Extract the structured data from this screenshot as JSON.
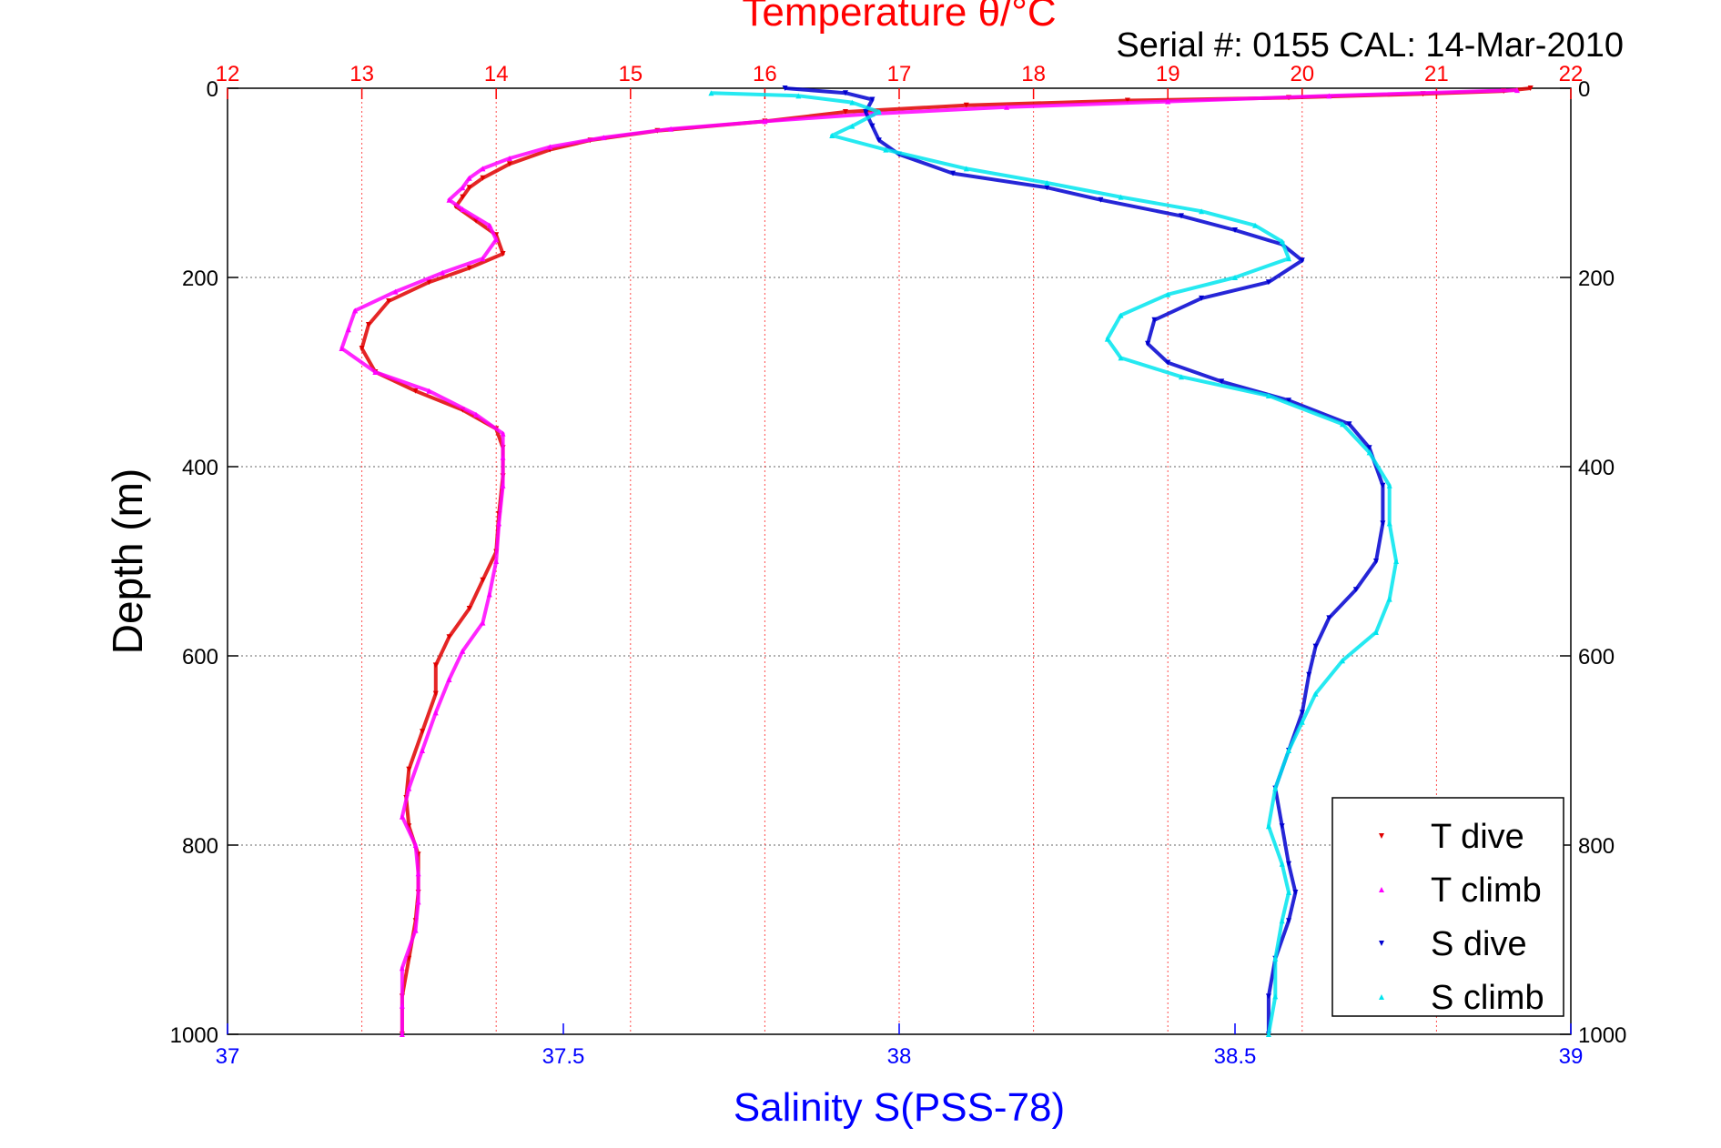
{
  "chart_data": {
    "type": "scatter",
    "title": "Temperature θ/°C",
    "subtitle": "Serial #: 0155  CAL: 14-Mar-2010",
    "ylabel": "Depth (m)",
    "xlabel_bottom": "Salinity S(PSS-78)",
    "xlabel_top": "Temperature θ/°C",
    "y_reversed": true,
    "ylim": [
      0,
      1000
    ],
    "xlim_bottom": [
      37,
      39
    ],
    "xlim_top": [
      12,
      22
    ],
    "y_ticks": [
      "0",
      "200",
      "400",
      "600",
      "800",
      "1000"
    ],
    "x_ticks_bottom": [
      "37",
      "37.5",
      "38",
      "38.5",
      "39"
    ],
    "x_ticks_top": [
      "12",
      "13",
      "14",
      "15",
      "16",
      "17",
      "18",
      "19",
      "20",
      "21",
      "22"
    ],
    "grid": true,
    "legend_position": "bottom-right",
    "colors": {
      "temperature_axis": "#ff0000",
      "salinity_axis": "#0000ff",
      "t_dive": "#e00000",
      "t_climb": "#ff00ff",
      "s_dive": "#0000d0",
      "s_climb": "#00e5ee"
    },
    "series": [
      {
        "name": "T dive",
        "axis": "top",
        "color": "#e00000",
        "marker": "triangle-down",
        "points": [
          [
            21.7,
            0
          ],
          [
            21.5,
            3
          ],
          [
            20.9,
            6
          ],
          [
            19.9,
            10
          ],
          [
            18.7,
            13
          ],
          [
            17.5,
            18
          ],
          [
            16.6,
            25
          ],
          [
            16.0,
            35
          ],
          [
            15.2,
            45
          ],
          [
            14.7,
            55
          ],
          [
            14.4,
            65
          ],
          [
            14.1,
            80
          ],
          [
            13.9,
            95
          ],
          [
            13.8,
            105
          ],
          [
            13.75,
            115
          ],
          [
            13.7,
            125
          ],
          [
            13.85,
            140
          ],
          [
            14.0,
            155
          ],
          [
            14.05,
            175
          ],
          [
            13.8,
            190
          ],
          [
            13.5,
            205
          ],
          [
            13.2,
            225
          ],
          [
            13.05,
            250
          ],
          [
            13.0,
            275
          ],
          [
            13.1,
            300
          ],
          [
            13.4,
            320
          ],
          [
            13.75,
            340
          ],
          [
            14.0,
            360
          ],
          [
            14.05,
            380
          ],
          [
            14.05,
            410
          ],
          [
            14.02,
            450
          ],
          [
            14.0,
            490
          ],
          [
            13.9,
            520
          ],
          [
            13.8,
            550
          ],
          [
            13.65,
            580
          ],
          [
            13.55,
            610
          ],
          [
            13.55,
            640
          ],
          [
            13.45,
            680
          ],
          [
            13.35,
            720
          ],
          [
            13.33,
            750
          ],
          [
            13.35,
            780
          ],
          [
            13.42,
            810
          ],
          [
            13.42,
            850
          ],
          [
            13.4,
            880
          ],
          [
            13.35,
            920
          ],
          [
            13.3,
            960
          ],
          [
            13.3,
            1000
          ]
        ]
      },
      {
        "name": "T climb",
        "axis": "top",
        "color": "#ff00ff",
        "marker": "triangle-up",
        "points": [
          [
            21.6,
            2
          ],
          [
            20.2,
            8
          ],
          [
            19.0,
            14
          ],
          [
            17.8,
            20
          ],
          [
            16.8,
            27
          ],
          [
            16.0,
            35
          ],
          [
            15.3,
            43
          ],
          [
            14.8,
            52
          ],
          [
            14.4,
            62
          ],
          [
            14.1,
            74
          ],
          [
            13.9,
            85
          ],
          [
            13.8,
            95
          ],
          [
            13.75,
            105
          ],
          [
            13.65,
            118
          ],
          [
            13.75,
            128
          ],
          [
            13.95,
            145
          ],
          [
            14.0,
            160
          ],
          [
            13.9,
            180
          ],
          [
            13.6,
            195
          ],
          [
            13.25,
            215
          ],
          [
            12.95,
            235
          ],
          [
            12.9,
            255
          ],
          [
            12.85,
            275
          ],
          [
            13.1,
            300
          ],
          [
            13.5,
            320
          ],
          [
            13.85,
            345
          ],
          [
            14.05,
            365
          ],
          [
            14.05,
            390
          ],
          [
            14.05,
            420
          ],
          [
            14.02,
            460
          ],
          [
            14.0,
            500
          ],
          [
            13.95,
            535
          ],
          [
            13.9,
            565
          ],
          [
            13.75,
            595
          ],
          [
            13.65,
            625
          ],
          [
            13.55,
            660
          ],
          [
            13.45,
            700
          ],
          [
            13.35,
            740
          ],
          [
            13.3,
            770
          ],
          [
            13.4,
            800
          ],
          [
            13.42,
            830
          ],
          [
            13.42,
            860
          ],
          [
            13.4,
            890
          ],
          [
            13.3,
            930
          ],
          [
            13.3,
            970
          ],
          [
            13.3,
            1000
          ]
        ]
      },
      {
        "name": "S dive",
        "axis": "bottom",
        "color": "#0000d0",
        "marker": "triangle-down",
        "points": [
          [
            37.83,
            0
          ],
          [
            37.92,
            5
          ],
          [
            37.96,
            12
          ],
          [
            37.95,
            25
          ],
          [
            37.96,
            40
          ],
          [
            37.97,
            55
          ],
          [
            38.0,
            70
          ],
          [
            38.08,
            90
          ],
          [
            38.22,
            105
          ],
          [
            38.3,
            118
          ],
          [
            38.42,
            135
          ],
          [
            38.5,
            150
          ],
          [
            38.57,
            165
          ],
          [
            38.6,
            182
          ],
          [
            38.55,
            205
          ],
          [
            38.45,
            222
          ],
          [
            38.38,
            245
          ],
          [
            38.37,
            270
          ],
          [
            38.4,
            290
          ],
          [
            38.48,
            310
          ],
          [
            38.58,
            330
          ],
          [
            38.67,
            355
          ],
          [
            38.7,
            380
          ],
          [
            38.72,
            420
          ],
          [
            38.72,
            460
          ],
          [
            38.71,
            500
          ],
          [
            38.68,
            530
          ],
          [
            38.64,
            560
          ],
          [
            38.62,
            590
          ],
          [
            38.61,
            620
          ],
          [
            38.6,
            660
          ],
          [
            38.58,
            700
          ],
          [
            38.56,
            740
          ],
          [
            38.57,
            780
          ],
          [
            38.58,
            820
          ],
          [
            38.59,
            850
          ],
          [
            38.58,
            880
          ],
          [
            38.56,
            920
          ],
          [
            38.55,
            960
          ],
          [
            38.55,
            1000
          ]
        ]
      },
      {
        "name": "S climb",
        "axis": "bottom",
        "color": "#00e5ee",
        "marker": "triangle-up",
        "points": [
          [
            37.72,
            5
          ],
          [
            37.85,
            8
          ],
          [
            37.93,
            15
          ],
          [
            37.97,
            25
          ],
          [
            37.93,
            40
          ],
          [
            37.9,
            50
          ],
          [
            37.98,
            65
          ],
          [
            38.1,
            85
          ],
          [
            38.22,
            100
          ],
          [
            38.33,
            115
          ],
          [
            38.45,
            130
          ],
          [
            38.53,
            145
          ],
          [
            38.57,
            162
          ],
          [
            38.58,
            180
          ],
          [
            38.5,
            200
          ],
          [
            38.4,
            218
          ],
          [
            38.33,
            240
          ],
          [
            38.31,
            265
          ],
          [
            38.33,
            285
          ],
          [
            38.42,
            305
          ],
          [
            38.55,
            325
          ],
          [
            38.66,
            355
          ],
          [
            38.7,
            385
          ],
          [
            38.73,
            420
          ],
          [
            38.73,
            460
          ],
          [
            38.74,
            500
          ],
          [
            38.73,
            540
          ],
          [
            38.71,
            575
          ],
          [
            38.66,
            605
          ],
          [
            38.62,
            640
          ],
          [
            38.6,
            670
          ],
          [
            38.58,
            700
          ],
          [
            38.56,
            740
          ],
          [
            38.55,
            780
          ],
          [
            38.57,
            820
          ],
          [
            38.58,
            850
          ],
          [
            38.57,
            880
          ],
          [
            38.56,
            920
          ],
          [
            38.56,
            960
          ],
          [
            38.55,
            1000
          ]
        ]
      }
    ]
  }
}
